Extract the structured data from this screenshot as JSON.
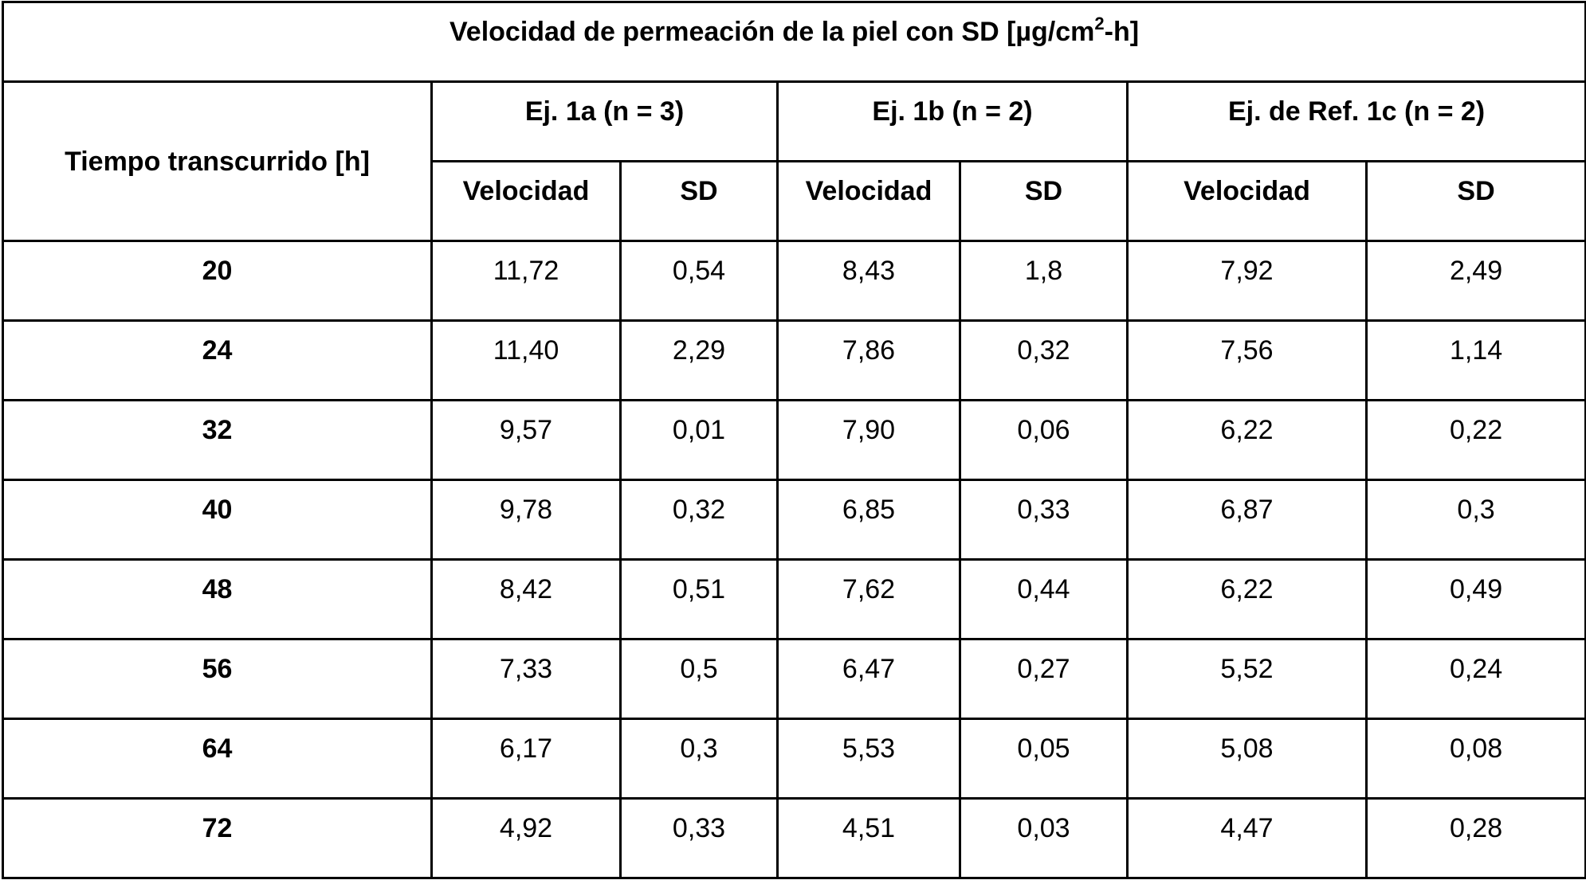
{
  "table": {
    "title": {
      "prefix": "Velocidad de permeación de la piel con SD [µg/cm",
      "sup": "2",
      "suffix": "-h]"
    },
    "row_header": "Tiempo transcurrido [h]",
    "groups": [
      {
        "label": "Ej. 1a (n = 3)"
      },
      {
        "label": "Ej. 1b (n = 2)"
      },
      {
        "label": "Ej. de Ref. 1c (n = 2)"
      }
    ],
    "subheaders": [
      "Velocidad",
      "SD",
      "Velocidad",
      "SD",
      "Velocidad",
      "SD"
    ],
    "rows": [
      {
        "time": "20",
        "cells": [
          "11,72",
          "0,54",
          "8,43",
          "1,8",
          "7,92",
          "2,49"
        ]
      },
      {
        "time": "24",
        "cells": [
          "11,40",
          "2,29",
          "7,86",
          "0,32",
          "7,56",
          "1,14"
        ]
      },
      {
        "time": "32",
        "cells": [
          "9,57",
          "0,01",
          "7,90",
          "0,06",
          "6,22",
          "0,22"
        ]
      },
      {
        "time": "40",
        "cells": [
          "9,78",
          "0,32",
          "6,85",
          "0,33",
          "6,87",
          "0,3"
        ]
      },
      {
        "time": "48",
        "cells": [
          "8,42",
          "0,51",
          "7,62",
          "0,44",
          "6,22",
          "0,49"
        ]
      },
      {
        "time": "56",
        "cells": [
          "7,33",
          "0,5",
          "6,47",
          "0,27",
          "5,52",
          "0,24"
        ]
      },
      {
        "time": "64",
        "cells": [
          "6,17",
          "0,3",
          "5,53",
          "0,05",
          "5,08",
          "0,08"
        ]
      },
      {
        "time": "72",
        "cells": [
          "4,92",
          "0,33",
          "4,51",
          "0,03",
          "4,47",
          "0,28"
        ]
      }
    ]
  }
}
